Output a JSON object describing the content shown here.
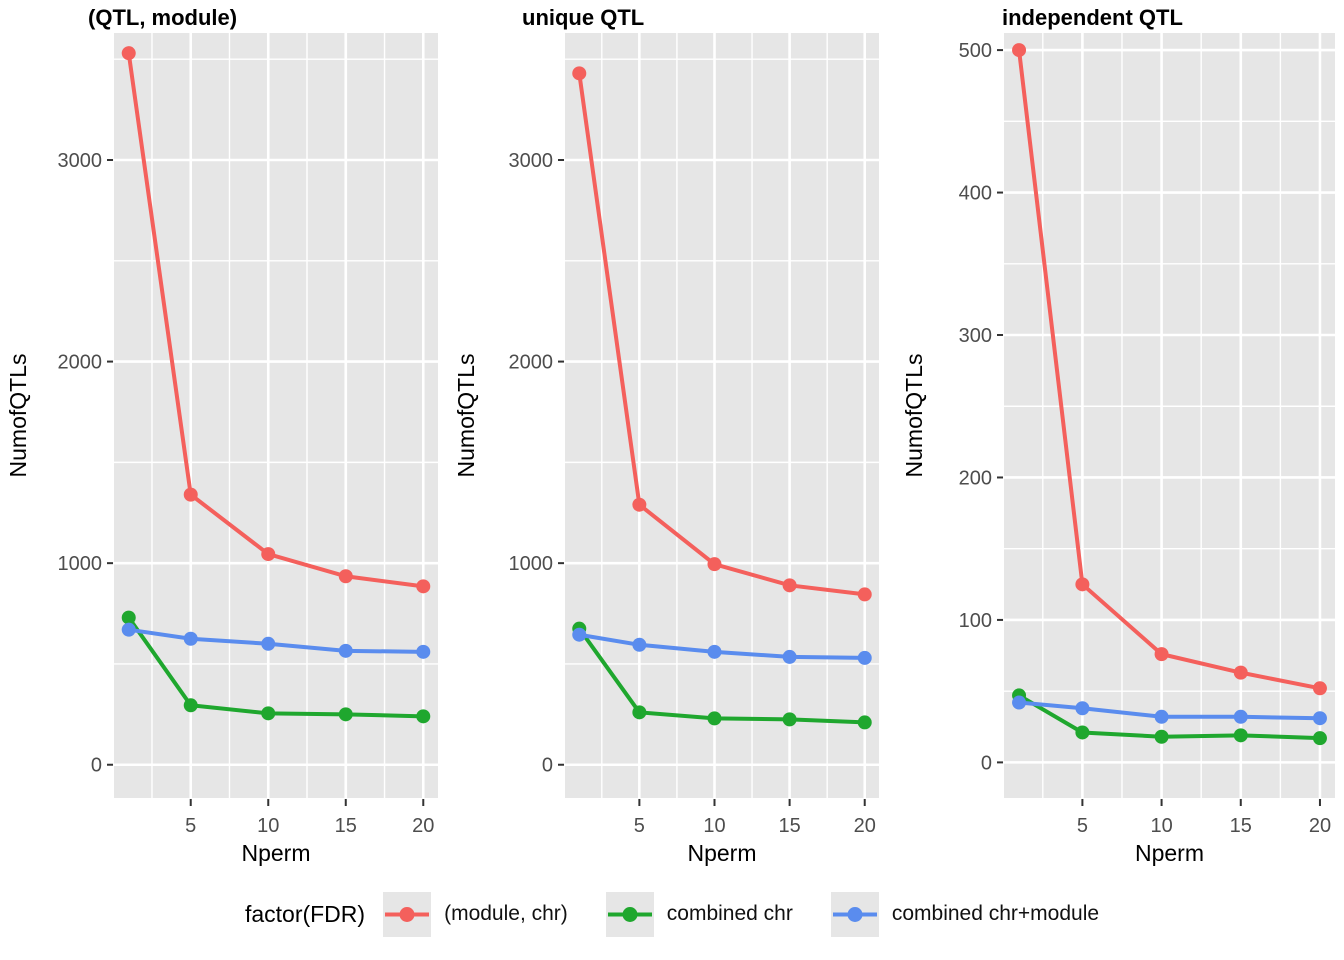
{
  "colors": {
    "red": "#F4605C",
    "green": "#1FA72E",
    "blue": "#5A8CEE",
    "panel_bg": "#E6E6E6",
    "grid": "#FFFFFF",
    "tick_label": "#4D4D4D",
    "axis_text": "#000000",
    "tick_mark": "#333333"
  },
  "legend": {
    "title": "factor(FDR)",
    "items": [
      {
        "label": "(module, chr)",
        "color_key": "red"
      },
      {
        "label": "combined chr",
        "color_key": "green"
      },
      {
        "label": "combined chr+module",
        "color_key": "blue"
      }
    ]
  },
  "chart_data": [
    {
      "type": "line",
      "title": "(QTL, module)",
      "xlabel": "Nperm",
      "ylabel": "NumofQTLs",
      "x": [
        1,
        5,
        10,
        15,
        20
      ],
      "xlim": [
        0.05,
        20.95
      ],
      "xticks": [
        5,
        10,
        15,
        20
      ],
      "xminor": [
        2.5,
        7.5,
        12.5,
        17.5
      ],
      "ylim": [
        -165,
        3630
      ],
      "yticks": [
        0,
        1000,
        2000,
        3000
      ],
      "yminor": [
        500,
        1500,
        2500,
        3500
      ],
      "grid": true,
      "legend_position": "bottom",
      "series": [
        {
          "name": "(module, chr)",
          "color_key": "red",
          "values": [
            3530,
            1340,
            1045,
            935,
            885
          ]
        },
        {
          "name": "combined chr",
          "color_key": "green",
          "values": [
            730,
            295,
            255,
            250,
            240
          ]
        },
        {
          "name": "combined chr+module",
          "color_key": "blue",
          "values": [
            670,
            625,
            600,
            565,
            560
          ]
        }
      ]
    },
    {
      "type": "line",
      "title": "unique QTL",
      "xlabel": "Nperm",
      "ylabel": "NumofQTLs",
      "x": [
        1,
        5,
        10,
        15,
        20
      ],
      "xlim": [
        0.05,
        20.95
      ],
      "xticks": [
        5,
        10,
        15,
        20
      ],
      "xminor": [
        2.5,
        7.5,
        12.5,
        17.5
      ],
      "ylim": [
        -165,
        3630
      ],
      "yticks": [
        0,
        1000,
        2000,
        3000
      ],
      "yminor": [
        500,
        1500,
        2500,
        3500
      ],
      "grid": true,
      "legend_position": "bottom",
      "series": [
        {
          "name": "(module, chr)",
          "color_key": "red",
          "values": [
            3430,
            1290,
            995,
            890,
            845
          ]
        },
        {
          "name": "combined chr",
          "color_key": "green",
          "values": [
            675,
            260,
            230,
            225,
            210
          ]
        },
        {
          "name": "combined chr+module",
          "color_key": "blue",
          "values": [
            645,
            595,
            560,
            535,
            530
          ]
        }
      ]
    },
    {
      "type": "line",
      "title": "independent QTL",
      "xlabel": "Nperm",
      "ylabel": "NumofQTLs",
      "x": [
        1,
        5,
        10,
        15,
        20
      ],
      "xlim": [
        0.05,
        20.95
      ],
      "xticks": [
        5,
        10,
        15,
        20
      ],
      "xminor": [
        2.5,
        7.5,
        12.5,
        17.5
      ],
      "ylim": [
        -25,
        512
      ],
      "yticks": [
        0,
        100,
        200,
        300,
        400,
        500
      ],
      "yminor": [
        50,
        150,
        250,
        350,
        450
      ],
      "grid": true,
      "legend_position": "bottom",
      "series": [
        {
          "name": "(module, chr)",
          "color_key": "red",
          "values": [
            500,
            125,
            76,
            63,
            52
          ]
        },
        {
          "name": "combined chr",
          "color_key": "green",
          "values": [
            47,
            21,
            18,
            19,
            17
          ]
        },
        {
          "name": "combined chr+module",
          "color_key": "blue",
          "values": [
            42,
            38,
            32,
            32,
            31
          ]
        }
      ]
    }
  ]
}
